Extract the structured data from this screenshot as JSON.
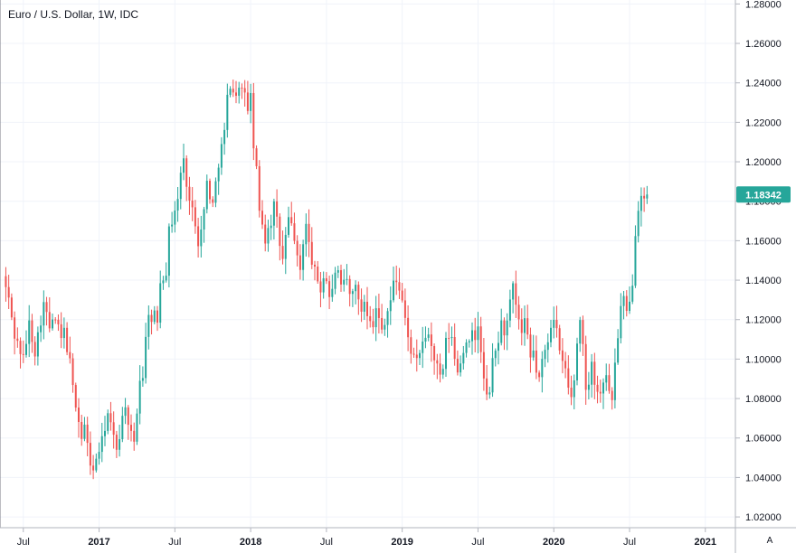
{
  "chart_data": {
    "type": "candlestick",
    "title": "Euro / U.S. Dollar, 1W, IDC",
    "ylim": [
      1.015,
      1.282
    ],
    "y_ticks": [
      "1.28000",
      "1.26000",
      "1.24000",
      "1.22000",
      "1.20000",
      "1.18000",
      "1.16000",
      "1.14000",
      "1.12000",
      "1.10000",
      "1.08000",
      "1.06000",
      "1.04000",
      "1.02000"
    ],
    "x_ticks": [
      {
        "label": "Jul",
        "week": 0,
        "bold": false
      },
      {
        "label": "2017",
        "week": 26,
        "bold": true
      },
      {
        "label": "Jul",
        "week": 52,
        "bold": false
      },
      {
        "label": "2018",
        "week": 78,
        "bold": true
      },
      {
        "label": "Jul",
        "week": 104,
        "bold": false
      },
      {
        "label": "2019",
        "week": 130,
        "bold": true
      },
      {
        "label": "Jul",
        "week": 156,
        "bold": false
      },
      {
        "label": "2020",
        "week": 182,
        "bold": true
      },
      {
        "label": "Jul",
        "week": 208,
        "bold": false
      },
      {
        "label": "2021",
        "week": 234,
        "bold": true
      }
    ],
    "last_price": "1.18342",
    "last_value": 1.18342,
    "up_color": "#26a69a",
    "down_color": "#ef5350",
    "price_label_color": "#26a69a",
    "close_path": [
      [
        -7,
        1.142
      ],
      [
        -5,
        1.13
      ],
      [
        -3,
        1.112
      ],
      [
        0,
        1.1
      ],
      [
        2,
        1.118
      ],
      [
        4,
        1.104
      ],
      [
        7,
        1.128
      ],
      [
        9,
        1.116
      ],
      [
        11,
        1.12
      ],
      [
        13,
        1.11
      ],
      [
        14,
        1.114
      ],
      [
        16,
        1.098
      ],
      [
        17,
        1.085
      ],
      [
        18,
        1.078
      ],
      [
        20,
        1.06
      ],
      [
        21,
        1.066
      ],
      [
        22,
        1.056
      ],
      [
        23,
        1.048
      ],
      [
        24,
        1.042
      ],
      [
        25,
        1.05
      ],
      [
        27,
        1.058
      ],
      [
        28,
        1.066
      ],
      [
        29,
        1.072
      ],
      [
        30,
        1.066
      ],
      [
        31,
        1.06
      ],
      [
        32,
        1.055
      ],
      [
        33,
        1.062
      ],
      [
        34,
        1.07
      ],
      [
        35,
        1.078
      ],
      [
        36,
        1.064
      ],
      [
        38,
        1.058
      ],
      [
        39,
        1.074
      ],
      [
        40,
        1.09
      ],
      [
        41,
        1.092
      ],
      [
        42,
        1.11
      ],
      [
        43,
        1.125
      ],
      [
        44,
        1.118
      ],
      [
        45,
        1.122
      ],
      [
        46,
        1.12
      ],
      [
        47,
        1.14
      ],
      [
        49,
        1.145
      ],
      [
        50,
        1.165
      ],
      [
        51,
        1.17
      ],
      [
        52,
        1.176
      ],
      [
        53,
        1.18
      ],
      [
        54,
        1.195
      ],
      [
        55,
        1.2
      ],
      [
        56,
        1.19
      ],
      [
        57,
        1.18
      ],
      [
        58,
        1.175
      ],
      [
        59,
        1.17
      ],
      [
        60,
        1.16
      ],
      [
        61,
        1.165
      ],
      [
        62,
        1.175
      ],
      [
        63,
        1.19
      ],
      [
        64,
        1.183
      ],
      [
        65,
        1.178
      ],
      [
        67,
        1.2
      ],
      [
        69,
        1.215
      ],
      [
        70,
        1.232
      ],
      [
        71,
        1.24
      ],
      [
        72,
        1.236
      ],
      [
        73,
        1.232
      ],
      [
        74,
        1.24
      ],
      [
        75,
        1.236
      ],
      [
        76,
        1.233
      ],
      [
        77,
        1.228
      ],
      [
        78,
        1.232
      ],
      [
        79,
        1.208
      ],
      [
        80,
        1.195
      ],
      [
        81,
        1.175
      ],
      [
        82,
        1.17
      ],
      [
        83,
        1.16
      ],
      [
        84,
        1.168
      ],
      [
        85,
        1.17
      ],
      [
        86,
        1.178
      ],
      [
        87,
        1.17
      ],
      [
        88,
        1.158
      ],
      [
        89,
        1.15
      ],
      [
        90,
        1.162
      ],
      [
        91,
        1.17
      ],
      [
        92,
        1.168
      ],
      [
        93,
        1.162
      ],
      [
        94,
        1.15
      ],
      [
        95,
        1.145
      ],
      [
        96,
        1.16
      ],
      [
        97,
        1.168
      ],
      [
        98,
        1.158
      ],
      [
        99,
        1.15
      ],
      [
        100,
        1.144
      ],
      [
        101,
        1.14
      ],
      [
        102,
        1.135
      ],
      [
        103,
        1.142
      ],
      [
        104,
        1.14
      ],
      [
        105,
        1.132
      ],
      [
        106,
        1.134
      ],
      [
        107,
        1.145
      ],
      [
        108,
        1.143
      ],
      [
        109,
        1.135
      ],
      [
        110,
        1.138
      ],
      [
        111,
        1.14
      ],
      [
        112,
        1.132
      ],
      [
        113,
        1.134
      ],
      [
        114,
        1.14
      ],
      [
        115,
        1.128
      ],
      [
        116,
        1.125
      ],
      [
        117,
        1.13
      ],
      [
        118,
        1.124
      ],
      [
        119,
        1.122
      ],
      [
        120,
        1.118
      ],
      [
        121,
        1.125
      ],
      [
        122,
        1.12
      ],
      [
        123,
        1.115
      ],
      [
        124,
        1.12
      ],
      [
        125,
        1.125
      ],
      [
        126,
        1.13
      ],
      [
        127,
        1.138
      ],
      [
        128,
        1.14
      ],
      [
        129,
        1.136
      ],
      [
        130,
        1.13
      ],
      [
        131,
        1.12
      ],
      [
        132,
        1.11
      ],
      [
        133,
        1.105
      ],
      [
        134,
        1.1
      ],
      [
        135,
        1.098
      ],
      [
        136,
        1.102
      ],
      [
        137,
        1.11
      ],
      [
        138,
        1.108
      ],
      [
        139,
        1.114
      ],
      [
        140,
        1.106
      ],
      [
        141,
        1.1
      ],
      [
        142,
        1.096
      ],
      [
        143,
        1.09
      ],
      [
        144,
        1.095
      ],
      [
        145,
        1.108
      ],
      [
        146,
        1.112
      ],
      [
        147,
        1.11
      ],
      [
        148,
        1.1
      ],
      [
        149,
        1.095
      ],
      [
        150,
        1.098
      ],
      [
        151,
        1.105
      ],
      [
        152,
        1.11
      ],
      [
        153,
        1.107
      ],
      [
        154,
        1.112
      ],
      [
        155,
        1.11
      ],
      [
        156,
        1.118
      ],
      [
        157,
        1.102
      ],
      [
        158,
        1.09
      ],
      [
        159,
        1.08
      ],
      [
        160,
        1.085
      ],
      [
        161,
        1.098
      ],
      [
        162,
        1.104
      ],
      [
        163,
        1.11
      ],
      [
        164,
        1.118
      ],
      [
        165,
        1.114
      ],
      [
        166,
        1.118
      ],
      [
        167,
        1.128
      ],
      [
        168,
        1.136
      ],
      [
        169,
        1.126
      ],
      [
        170,
        1.12
      ],
      [
        171,
        1.112
      ],
      [
        172,
        1.118
      ],
      [
        173,
        1.11
      ],
      [
        174,
        1.1
      ],
      [
        175,
        1.104
      ],
      [
        176,
        1.094
      ],
      [
        177,
        1.09
      ],
      [
        178,
        1.098
      ],
      [
        179,
        1.104
      ],
      [
        180,
        1.11
      ],
      [
        181,
        1.118
      ],
      [
        182,
        1.122
      ],
      [
        183,
        1.115
      ],
      [
        184,
        1.102
      ],
      [
        185,
        1.098
      ],
      [
        186,
        1.095
      ],
      [
        187,
        1.085
      ],
      [
        188,
        1.08
      ],
      [
        189,
        1.09
      ],
      [
        190,
        1.108
      ],
      [
        191,
        1.12
      ],
      [
        192,
        1.11
      ],
      [
        193,
        1.082
      ],
      [
        194,
        1.09
      ],
      [
        195,
        1.1
      ],
      [
        196,
        1.088
      ],
      [
        197,
        1.084
      ],
      [
        198,
        1.082
      ],
      [
        199,
        1.09
      ],
      [
        200,
        1.094
      ],
      [
        201,
        1.082
      ],
      [
        202,
        1.08
      ],
      [
        203,
        1.098
      ],
      [
        204,
        1.112
      ],
      [
        205,
        1.126
      ],
      [
        206,
        1.13
      ],
      [
        207,
        1.122
      ],
      [
        208,
        1.128
      ],
      [
        209,
        1.14
      ],
      [
        210,
        1.165
      ],
      [
        211,
        1.178
      ],
      [
        212,
        1.185
      ],
      [
        213,
        1.18
      ],
      [
        214,
        1.183
      ]
    ]
  }
}
